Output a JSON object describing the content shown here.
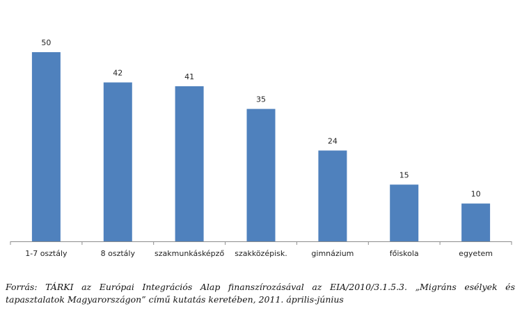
{
  "chart_data": {
    "type": "bar",
    "categories": [
      "1-7 osztály",
      "8 osztály",
      "szakmunkásképző",
      "szakközépisk.",
      "gimnázium",
      "főiskola",
      "egyetem"
    ],
    "values": [
      50,
      42,
      41,
      35,
      24,
      15,
      10
    ],
    "title": "",
    "xlabel": "",
    "ylabel": "",
    "ylim": [
      0,
      55
    ],
    "grid": false,
    "legend": "none",
    "bar_color": "#4f81bd"
  },
  "source": {
    "line1": "Forrás: TÁRKI az Európai Integrációs Alap finanszírozásával az EIA/2010/3.1.5.3. „Migráns esélyek és",
    "line2": "tapasztalatok Magyarországon” című kutatás keretében, 2011. április-június"
  }
}
